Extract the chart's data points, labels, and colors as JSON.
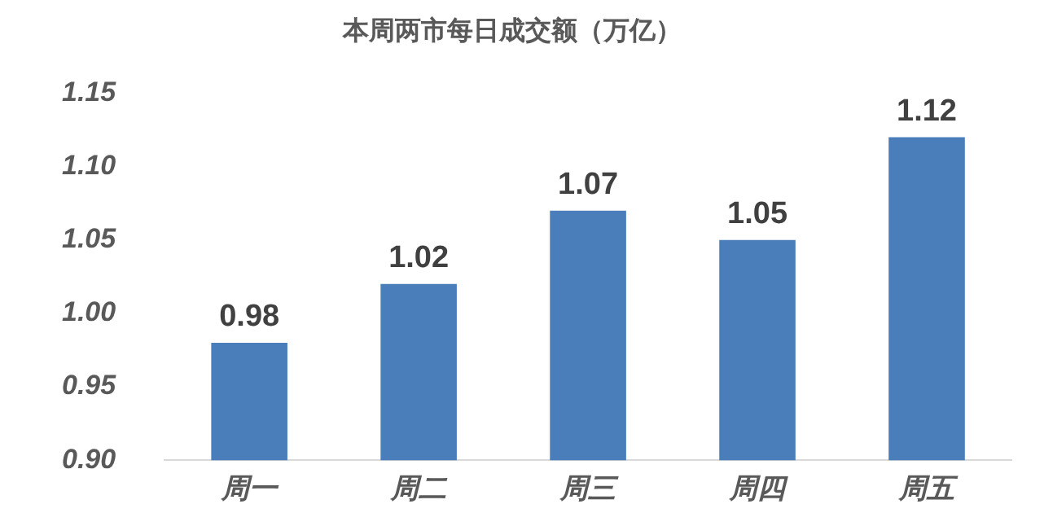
{
  "chart_data": {
    "type": "bar",
    "title": "本周两市每日成交额（万亿）",
    "categories": [
      "周一",
      "周二",
      "周三",
      "周四",
      "周五"
    ],
    "values": [
      0.98,
      1.02,
      1.07,
      1.05,
      1.12
    ],
    "color": "#4a7ebb",
    "ylim": [
      0.9,
      1.15
    ],
    "yticks": [
      {
        "value": 0.9,
        "label": "0.90"
      },
      {
        "value": 0.95,
        "label": "0.95"
      },
      {
        "value": 1.0,
        "label": "1.00"
      },
      {
        "value": 1.05,
        "label": "1.05"
      },
      {
        "value": 1.1,
        "label": "1.10"
      },
      {
        "value": 1.15,
        "label": "1.15"
      }
    ],
    "grid": false,
    "legend": false,
    "data_labels": true
  }
}
